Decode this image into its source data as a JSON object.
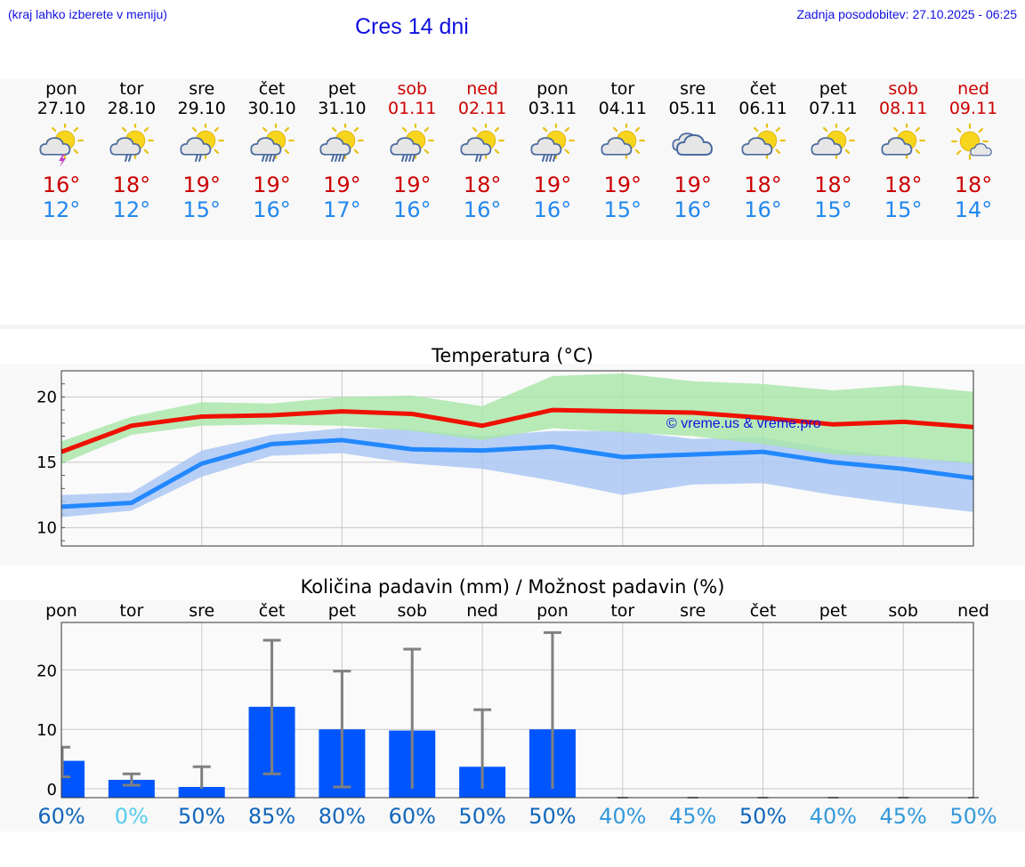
{
  "header": {
    "menu_hint": "(kraj lahko izberete v meniju)",
    "title": "Cres 14 dni",
    "updated": "Zadnja posodobitev: 27.10.2025 - 06:25",
    "watermark": "© vreme.us & vreme.pro"
  },
  "days": [
    {
      "name": "pon",
      "date": "27.10",
      "weekend": false,
      "icon": "sun-cloud-thunder-icon",
      "max": "16°",
      "min": "12°"
    },
    {
      "name": "tor",
      "date": "28.10",
      "weekend": false,
      "icon": "sun-cloud-light-rain-icon",
      "max": "18°",
      "min": "12°"
    },
    {
      "name": "sre",
      "date": "29.10",
      "weekend": false,
      "icon": "sun-cloud-light-rain-icon",
      "max": "19°",
      "min": "15°"
    },
    {
      "name": "čet",
      "date": "30.10",
      "weekend": false,
      "icon": "sun-cloud-rain-icon",
      "max": "19°",
      "min": "16°"
    },
    {
      "name": "pet",
      "date": "31.10",
      "weekend": false,
      "icon": "sun-cloud-rain-icon",
      "max": "19°",
      "min": "17°"
    },
    {
      "name": "sob",
      "date": "01.11",
      "weekend": true,
      "icon": "sun-cloud-rain-icon",
      "max": "19°",
      "min": "16°"
    },
    {
      "name": "ned",
      "date": "02.11",
      "weekend": true,
      "icon": "sun-cloud-light-rain-icon",
      "max": "18°",
      "min": "16°"
    },
    {
      "name": "pon",
      "date": "03.11",
      "weekend": false,
      "icon": "sun-cloud-rain-icon",
      "max": "19°",
      "min": "16°"
    },
    {
      "name": "tor",
      "date": "04.11",
      "weekend": false,
      "icon": "sun-cloud-icon",
      "max": "19°",
      "min": "15°"
    },
    {
      "name": "sre",
      "date": "05.11",
      "weekend": false,
      "icon": "cloudy-icon",
      "max": "19°",
      "min": "16°"
    },
    {
      "name": "čet",
      "date": "06.11",
      "weekend": false,
      "icon": "sun-cloud-icon",
      "max": "18°",
      "min": "16°"
    },
    {
      "name": "pet",
      "date": "07.11",
      "weekend": false,
      "icon": "sun-cloud-icon",
      "max": "18°",
      "min": "15°"
    },
    {
      "name": "sob",
      "date": "08.11",
      "weekend": true,
      "icon": "sun-cloud-icon",
      "max": "18°",
      "min": "15°"
    },
    {
      "name": "ned",
      "date": "09.11",
      "weekend": true,
      "icon": "sun-small-cloud-icon",
      "max": "18°",
      "min": "14°"
    }
  ],
  "colors": {
    "max_line": "#ee1100",
    "min_line": "#2288ff",
    "max_band": "#a8e6a8",
    "min_band": "#a8c4f4",
    "bar": "#0055ff",
    "error_bar": "#808080",
    "weekend": "#cc0000",
    "min_text": "#2288ee"
  },
  "chart_data": [
    {
      "type": "line",
      "title": "Temperatura (°C)",
      "xlabel": "",
      "ylabel": "",
      "ylim": [
        8.6,
        22
      ],
      "yticks": [
        10,
        15,
        20
      ],
      "grid": true,
      "x": [
        0,
        1,
        2,
        3,
        4,
        5,
        6,
        7,
        8,
        9,
        10,
        11,
        12,
        13
      ],
      "series": [
        {
          "role": "max",
          "values": [
            15.8,
            17.8,
            18.5,
            18.6,
            18.9,
            18.7,
            17.8,
            19.0,
            18.9,
            18.8,
            18.4,
            17.9,
            18.1,
            17.7
          ],
          "band_low": [
            14.9,
            17.1,
            17.8,
            17.9,
            17.8,
            17.4,
            16.7,
            17.6,
            17.3,
            17.0,
            16.4,
            15.6,
            15.4,
            14.9
          ],
          "band_high": [
            16.6,
            18.5,
            19.6,
            19.5,
            20.0,
            20.1,
            19.3,
            21.6,
            21.8,
            21.2,
            21.0,
            20.5,
            20.9,
            20.4
          ]
        },
        {
          "role": "min",
          "values": [
            11.6,
            11.9,
            14.9,
            16.4,
            16.7,
            16.0,
            15.9,
            16.2,
            15.4,
            15.6,
            15.8,
            15.0,
            14.5,
            13.8
          ],
          "band_low": [
            10.8,
            11.3,
            13.9,
            15.5,
            15.7,
            14.9,
            14.5,
            13.6,
            12.5,
            13.3,
            13.4,
            12.5,
            11.8,
            11.2
          ],
          "band_high": [
            12.5,
            12.7,
            15.9,
            17.1,
            17.6,
            17.5,
            17.0,
            17.4,
            17.4,
            16.8,
            16.9,
            16.0,
            15.4,
            15.0
          ]
        }
      ]
    },
    {
      "type": "bar",
      "title": "Količina padavin (mm) / Možnost padavin (%)",
      "xlabel": "",
      "ylabel": "",
      "ylim": [
        -1.5,
        28
      ],
      "yticks": [
        0,
        10,
        20
      ],
      "grid": true,
      "categories": [
        "pon",
        "tor",
        "sre",
        "čet",
        "pet",
        "sob",
        "ned",
        "pon",
        "tor",
        "sre",
        "čet",
        "pet",
        "sob",
        "ned"
      ],
      "values": [
        4.7,
        1.5,
        0.3,
        13.8,
        10.0,
        9.8,
        3.7,
        10.0,
        0,
        0,
        0,
        0,
        0,
        0
      ],
      "err_low": [
        2.0,
        0.6,
        0,
        2.5,
        0.3,
        0,
        0,
        0,
        0,
        0,
        0,
        0,
        0,
        0
      ],
      "err_high": [
        7.0,
        2.5,
        3.7,
        25.0,
        19.8,
        23.5,
        13.3,
        26.3,
        0,
        0,
        0,
        0,
        0,
        0
      ],
      "probabilities": [
        "60%",
        "0%",
        "50%",
        "85%",
        "80%",
        "60%",
        "50%",
        "50%",
        "40%",
        "45%",
        "50%",
        "40%",
        "45%",
        "50%"
      ],
      "prob_colors": [
        "#1166bb",
        "#55ccee",
        "#1166bb",
        "#1166bb",
        "#1166bb",
        "#1166bb",
        "#1166bb",
        "#1166bb",
        "#3399dd",
        "#3399dd",
        "#1166bb",
        "#3399dd",
        "#3399dd",
        "#3399dd"
      ]
    }
  ]
}
